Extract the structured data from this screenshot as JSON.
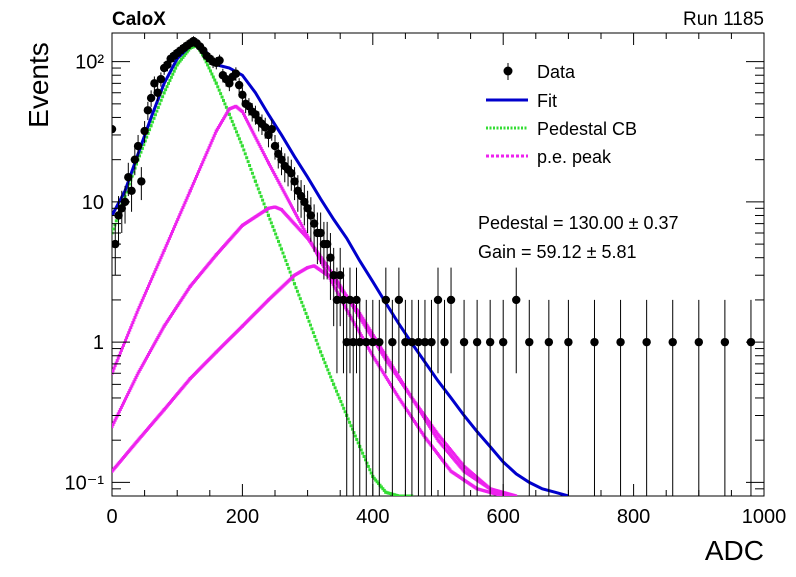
{
  "header": {
    "experiment": "CaloX",
    "run": "Run 1185"
  },
  "chart_data": {
    "type": "scatter",
    "xlabel": "ADC",
    "ylabel": "Events",
    "xlim": [
      0,
      1000
    ],
    "ylim": [
      0.08,
      160
    ],
    "yscale": "log",
    "x_ticks": [
      0,
      200,
      400,
      600,
      800,
      1000
    ],
    "x_tick_labels": [
      "0",
      "200",
      "400",
      "600",
      "800",
      "1000"
    ],
    "y_ticks": [
      0.1,
      1,
      10,
      100
    ],
    "y_tick_labels": [
      "10⁻¹",
      "1",
      "10",
      "10²"
    ],
    "legend_position": "top-right",
    "legend": [
      {
        "label": "Data",
        "style": "marker",
        "color": "#000000"
      },
      {
        "label": "Fit",
        "style": "line",
        "color": "#0000cc"
      },
      {
        "label": "Pedestal CB",
        "style": "dotted",
        "color": "#33dd33"
      },
      {
        "label": "p.e. peak",
        "style": "dotted",
        "color": "#ee22ee"
      }
    ],
    "annotations": [
      {
        "text": "Pedestal = 130.00 ± 0.37"
      },
      {
        "text": "Gain = 59.12 ± 5.81"
      }
    ],
    "data": {
      "x": [
        0,
        5,
        10,
        15,
        20,
        25,
        30,
        35,
        40,
        45,
        50,
        55,
        60,
        65,
        70,
        75,
        80,
        85,
        90,
        95,
        100,
        105,
        110,
        115,
        120,
        125,
        130,
        135,
        140,
        145,
        150,
        155,
        160,
        165,
        170,
        175,
        180,
        185,
        190,
        195,
        200,
        205,
        210,
        215,
        220,
        225,
        230,
        235,
        240,
        245,
        250,
        255,
        260,
        265,
        270,
        275,
        280,
        285,
        290,
        295,
        300,
        305,
        310,
        315,
        320,
        325,
        330,
        335,
        340,
        345,
        350,
        355,
        360,
        365,
        370,
        375,
        380,
        390,
        400,
        410,
        420,
        430,
        440,
        450,
        460,
        470,
        480,
        490,
        500,
        510,
        520,
        540,
        560,
        580,
        600,
        620,
        640,
        670,
        700,
        740,
        780,
        820,
        860,
        900,
        940,
        980
      ],
      "y": [
        33,
        5,
        8,
        9,
        10,
        15,
        12,
        20,
        25,
        14,
        32,
        45,
        55,
        70,
        60,
        75,
        90,
        95,
        105,
        110,
        115,
        120,
        125,
        130,
        135,
        140,
        135,
        128,
        120,
        110,
        105,
        100,
        98,
        102,
        80,
        75,
        70,
        78,
        82,
        68,
        58,
        50,
        48,
        44,
        42,
        38,
        36,
        34,
        30,
        33,
        25,
        22,
        20,
        18,
        17,
        16,
        14,
        12,
        11,
        10,
        9,
        8,
        7,
        6,
        6,
        5,
        5,
        4,
        3,
        2,
        3,
        2,
        1,
        2,
        1,
        2,
        1,
        1,
        1,
        1,
        2,
        1,
        2,
        1,
        1,
        1,
        1,
        1,
        2,
        1,
        2,
        1,
        1,
        1,
        1,
        2,
        1,
        1,
        1,
        1,
        1,
        1,
        1,
        1,
        1,
        1
      ],
      "yerr": [
        6,
        2,
        3,
        3,
        3,
        4,
        3.5,
        4.5,
        5,
        3.7,
        5.7,
        6.7,
        7.4,
        8.4,
        7.7,
        8.7,
        9.5,
        9.7,
        10.2,
        10.5,
        10.7,
        11,
        11.2,
        11.4,
        11.6,
        11.8,
        11.6,
        11.3,
        11,
        10.5,
        10.2,
        10,
        9.9,
        10.1,
        8.9,
        8.7,
        8.4,
        8.8,
        9.1,
        8.2,
        7.6,
        7.1,
        6.9,
        6.6,
        6.5,
        6.2,
        6,
        5.8,
        5.5,
        5.7,
        5,
        4.7,
        4.5,
        4.2,
        4.1,
        4,
        3.7,
        3.5,
        3.3,
        3.2,
        3,
        2.8,
        2.6,
        2.4,
        2.4,
        2.2,
        2.2,
        2,
        1.7,
        1.4,
        1.7,
        1.4,
        1,
        1.4,
        1,
        1.4,
        1,
        1,
        1,
        1,
        1.4,
        1,
        1.4,
        1,
        1,
        1,
        1,
        1,
        1.4,
        1,
        1.4,
        1,
        1,
        1,
        1,
        1.4,
        1,
        1,
        1,
        1,
        1,
        1,
        1,
        1,
        1,
        1
      ]
    },
    "fit": {
      "x": [
        0,
        20,
        40,
        60,
        80,
        100,
        120,
        130,
        140,
        160,
        180,
        200,
        220,
        240,
        260,
        280,
        300,
        320,
        340,
        360,
        380,
        400,
        420,
        440,
        460,
        480,
        500,
        520,
        540,
        560,
        580,
        600,
        620,
        640,
        660,
        680,
        700
      ],
      "y": [
        8,
        12,
        22,
        40,
        70,
        105,
        130,
        135,
        125,
        95,
        90,
        80,
        60,
        42,
        30,
        21,
        15,
        10.5,
        7.5,
        5.5,
        3.8,
        2.7,
        1.9,
        1.35,
        0.98,
        0.72,
        0.53,
        0.4,
        0.3,
        0.23,
        0.18,
        0.14,
        0.115,
        0.1,
        0.09,
        0.085,
        0.08
      ]
    },
    "pedestal_cb": {
      "x": [
        0,
        20,
        40,
        60,
        80,
        100,
        120,
        130,
        140,
        160,
        180,
        200,
        220,
        240,
        260,
        280,
        300,
        320,
        340,
        360,
        380,
        400,
        420,
        440,
        460
      ],
      "y": [
        6,
        11,
        20,
        35,
        60,
        95,
        125,
        130,
        110,
        70,
        42,
        25,
        14,
        8,
        4.6,
        2.6,
        1.5,
        0.85,
        0.5,
        0.3,
        0.18,
        0.11,
        0.085,
        0.08,
        0.08
      ]
    },
    "pe_peaks": [
      {
        "x": [
          0,
          40,
          80,
          120,
          160,
          180,
          190,
          200,
          240,
          280,
          320,
          360,
          400,
          440,
          480,
          520,
          560,
          600,
          620
        ],
        "y": [
          0.6,
          1.7,
          4.5,
          12,
          32,
          46,
          48,
          44,
          19,
          8.5,
          3.8,
          1.7,
          0.8,
          0.4,
          0.21,
          0.12,
          0.09,
          0.08,
          0.08
        ]
      },
      {
        "x": [
          0,
          40,
          80,
          120,
          160,
          200,
          240,
          250,
          260,
          300,
          340,
          380,
          420,
          460,
          500,
          540,
          580,
          620
        ],
        "y": [
          0.25,
          0.6,
          1.3,
          2.5,
          4.2,
          6.8,
          9.0,
          9.2,
          8.8,
          5.5,
          3.0,
          1.5,
          0.75,
          0.4,
          0.22,
          0.13,
          0.09,
          0.08
        ]
      },
      {
        "x": [
          0,
          40,
          80,
          120,
          160,
          200,
          240,
          280,
          300,
          310,
          340,
          380,
          420,
          460,
          500,
          540,
          580,
          610
        ],
        "y": [
          0.12,
          0.2,
          0.33,
          0.55,
          0.85,
          1.3,
          2.0,
          3.0,
          3.4,
          3.5,
          2.8,
          1.6,
          0.8,
          0.4,
          0.2,
          0.12,
          0.09,
          0.08
        ]
      }
    ]
  }
}
